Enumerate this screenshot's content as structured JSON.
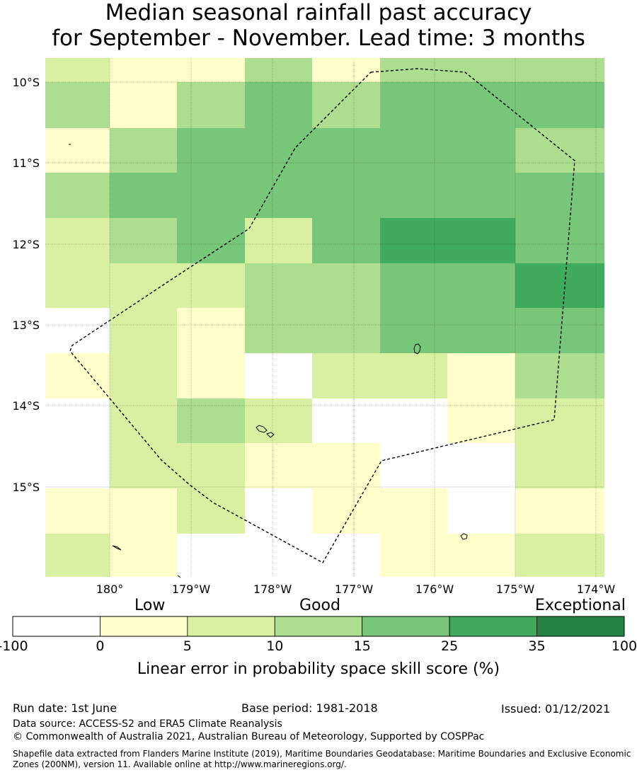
{
  "title": {
    "line1": "Median seasonal rainfall past accuracy",
    "line2": "for September - November. Lead time: 3 months"
  },
  "map": {
    "lon_ticks": [
      "180°",
      "179°W",
      "178°W",
      "177°W",
      "176°W",
      "175°W",
      "174°W"
    ],
    "lat_ticks": [
      "10°S",
      "11°S",
      "12°S",
      "13°S",
      "14°S",
      "15°S"
    ],
    "grid": true,
    "boundary_style": "dashed",
    "grid_levels": [
      [
        2,
        1,
        1,
        3,
        1,
        3,
        3,
        3
      ],
      [
        3,
        1,
        3,
        4,
        3,
        4,
        4,
        4
      ],
      [
        1,
        3,
        4,
        4,
        4,
        4,
        4,
        3
      ],
      [
        3,
        4,
        4,
        4,
        4,
        4,
        4,
        4
      ],
      [
        2,
        3,
        4,
        2,
        4,
        5,
        5,
        4
      ],
      [
        2,
        2,
        2,
        3,
        3,
        4,
        4,
        5
      ],
      [
        0,
        2,
        1,
        3,
        3,
        4,
        4,
        4
      ],
      [
        1,
        2,
        1,
        0,
        2,
        2,
        1,
        3
      ],
      [
        0,
        2,
        3,
        2,
        0,
        0,
        1,
        2
      ],
      [
        0,
        2,
        2,
        1,
        1,
        0,
        0,
        2
      ],
      [
        1,
        1,
        2,
        0,
        1,
        1,
        0,
        1
      ],
      [
        2,
        1,
        0,
        0,
        0,
        1,
        1,
        2
      ]
    ]
  },
  "colorbar": {
    "category_low": "Low",
    "category_good": "Good",
    "category_exceptional": "Exceptional",
    "bins": [
      {
        "from": -100,
        "to": 0,
        "color": "#ffffff"
      },
      {
        "from": 0,
        "to": 5,
        "color": "#ffffcc"
      },
      {
        "from": 5,
        "to": 10,
        "color": "#d9f0a3"
      },
      {
        "from": 10,
        "to": 15,
        "color": "#addd8e"
      },
      {
        "from": 15,
        "to": 25,
        "color": "#78c679"
      },
      {
        "from": 25,
        "to": 35,
        "color": "#41ab5d"
      },
      {
        "from": 35,
        "to": 100,
        "color": "#238443"
      }
    ],
    "tick_labels": [
      "-100",
      "0",
      "5",
      "10",
      "15",
      "25",
      "35",
      "100"
    ],
    "label": "Linear error in probability space skill score (%)"
  },
  "footer": {
    "run_date": "Run date: 1st June",
    "base_period": "Base period: 1981-2018",
    "issued": "Issued: 01/12/2021",
    "data_source": "Data source: ACCESS-S2 and ERA5 Climate Reanalysis",
    "copyright": "© Commonwealth of Australia 2021, Australian Bureau of Meteorology, Supported by COSPPac",
    "shapefile": "Shapefile data extracted from Flanders Marine Institute (2019), Maritime Boundaries Geodatabase: Maritime Boundaries and Exclusive Economic Zones (200NM), version 11. Available online at http://www.marineregions.org/."
  }
}
